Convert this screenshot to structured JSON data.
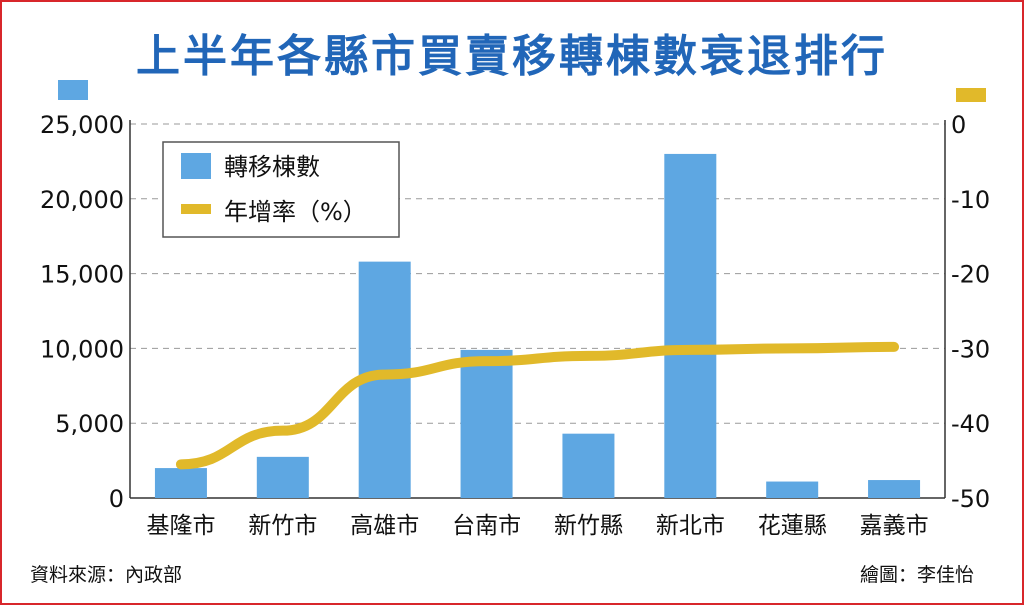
{
  "title": "上半年各縣市買賣移轉棟數衰退排行",
  "source": "資料來源：內政部",
  "credit": "繪圖：李佳怡",
  "colors": {
    "bar": "#5ea7e2",
    "line": "#e1b92a",
    "title": "#2166b8",
    "frame": "#d8262b"
  },
  "chart_data": {
    "type": "bar",
    "categories": [
      "基隆市",
      "新竹市",
      "高雄市",
      "台南市",
      "新竹縣",
      "新北市",
      "花蓮縣",
      "嘉義市"
    ],
    "series": [
      {
        "name": "轉移棟數",
        "type": "bar",
        "axis": "left",
        "values": [
          2000,
          2750,
          15800,
          9900,
          4300,
          23000,
          1100,
          1200
        ]
      },
      {
        "name": "年增率（%）",
        "type": "line",
        "axis": "right",
        "values": [
          -45.5,
          -41.0,
          -33.5,
          -31.7,
          -31.0,
          -30.2,
          -30.0,
          -29.8
        ]
      }
    ],
    "y_left": {
      "ylim": [
        0,
        25000
      ],
      "ticks": [
        "0",
        "5,000",
        "10,000",
        "15,000",
        "20,000",
        "25,000"
      ],
      "tick_values": [
        0,
        5000,
        10000,
        15000,
        20000,
        25000
      ]
    },
    "y_right": {
      "ylim": [
        -50,
        0
      ],
      "ticks": [
        "-50",
        "-40",
        "-30",
        "-20",
        "-10",
        "0"
      ],
      "tick_values": [
        -50,
        -40,
        -30,
        -20,
        -10,
        0
      ]
    },
    "grid": "horizontal-dashed",
    "legend": "top-left"
  }
}
